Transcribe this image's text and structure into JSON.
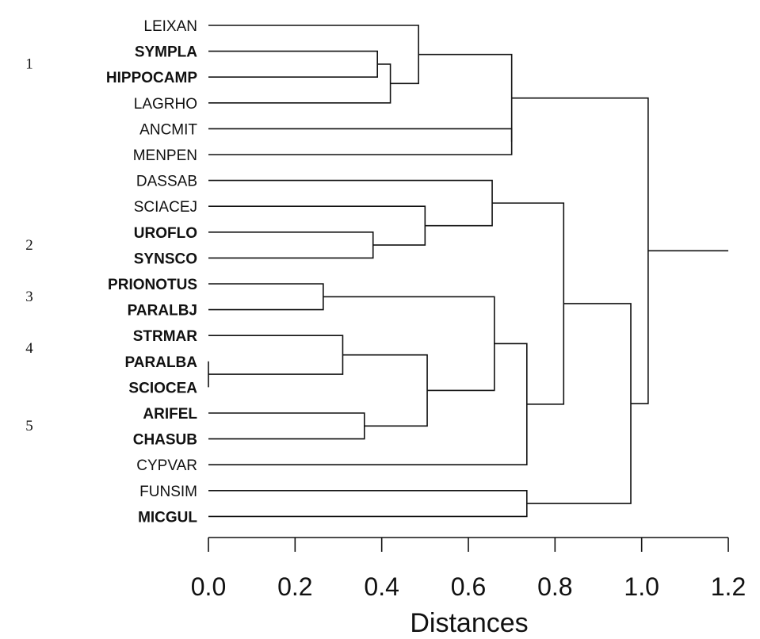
{
  "chart_data": {
    "type": "dendrogram",
    "xlabel": "Distances",
    "xlim": [
      0,
      1.2
    ],
    "xticks": [
      0.0,
      0.2,
      0.4,
      0.6,
      0.8,
      1.0,
      1.2
    ],
    "xtick_labels": [
      "0.0",
      "0.2",
      "0.4",
      "0.6",
      "0.8",
      "1.0",
      "1.2"
    ],
    "leaves": [
      "LEIXAN",
      "SYMPLA",
      "HIPPOCAMP",
      "LAGRHO",
      "ANCMIT",
      "MENPEN",
      "DASSAB",
      "SCIACEJ",
      "UROFLO",
      "SYNSCO",
      "PRIONOTUS",
      "PARALBJ",
      "STRMAR",
      "PARALBA",
      "SCIOCEA",
      "ARIFEL",
      "CHASUB",
      "CYPVAR",
      "FUNSIM",
      "MICGUL"
    ],
    "bold_leaves": [
      "SYMPLA",
      "HIPPOCAMP",
      "UROFLO",
      "SYNSCO",
      "PRIONOTUS",
      "PARALBJ",
      "STRMAR",
      "PARALBA",
      "SCIOCEA",
      "ARIFEL",
      "CHASUB",
      "MICGUL"
    ],
    "group_labels": [
      {
        "text": "1",
        "leaf": "SYMPLA"
      },
      {
        "text": "2",
        "leaf": "UROFLO"
      },
      {
        "text": "3",
        "leaf": "PRIONOTUS"
      },
      {
        "text": "4",
        "leaf": "STRMAR"
      },
      {
        "text": "5",
        "leaf": "ARIFEL"
      }
    ],
    "merges": [
      {
        "a": "PARALBA",
        "b": "SCIOCEA",
        "height": 0.0
      },
      {
        "a": "PRIONOTUS",
        "b": "PARALBJ",
        "height": 0.265
      },
      {
        "a": "STRMAR",
        "b": "PARALBA+SCIOCEA",
        "height": 0.31
      },
      {
        "a": "ARIFEL",
        "b": "CHASUB",
        "height": 0.36
      },
      {
        "a": "UROFLO",
        "b": "SYNSCO",
        "height": 0.38
      },
      {
        "a": "SYMPLA",
        "b": "HIPPOCAMP",
        "height": 0.39
      },
      {
        "a": "SYMPLA+HIPPOCAMP",
        "b": "LAGRHO",
        "height": 0.42
      },
      {
        "a": "LEIXAN",
        "b": "SYMPLA+HIPPOCAMP+LAGRHO",
        "height": 0.485
      },
      {
        "a": "SCIACEJ",
        "b": "UROFLO+SYNSCO",
        "height": 0.5
      },
      {
        "a": "STRMAR+PARALBA+SCIOCEA",
        "b": "ARIFEL+CHASUB",
        "height": 0.505
      },
      {
        "a": "DASSAB",
        "b": "SCIACEJ+UROFLO+SYNSCO",
        "height": 0.655
      },
      {
        "a": "PRIONOTUS+PARALBJ",
        "b": "STRMAR+PARALBA+SCIOCEA+ARIFEL+CHASUB",
        "height": 0.66
      },
      {
        "a": "ANCMIT",
        "b": "MENPEN",
        "height": 0.7
      },
      {
        "a": "LEIXAN+SYMPLA+HIPPOCAMP+LAGRHO",
        "b": "ANCMIT+MENPEN",
        "height": 0.7
      },
      {
        "a": "PRIONOTUS+PARALBJ+STRMAR+PARALBA+SCIOCEA+ARIFEL+CHASUB",
        "b": "CYPVAR",
        "height": 0.735
      },
      {
        "a": "FUNSIM",
        "b": "MICGUL",
        "height": 0.735
      },
      {
        "a": "DASSAB+SCIACEJ+UROFLO+SYNSCO",
        "b": "PRIONOTUS+PARALBJ+STRMAR+PARALBA+SCIOCEA+ARIFEL+CHASUB+CYPVAR",
        "height": 0.82
      },
      {
        "a": "DASSAB+SCIACEJ+UROFLO+SYNSCO+PRIONOTUS+PARALBJ+STRMAR+PARALBA+SCIOCEA+ARIFEL+CHASUB+CYPVAR",
        "b": "FUNSIM+MICGUL",
        "height": 0.975
      },
      {
        "a": "LEIXAN+SYMPLA+HIPPOCAMP+LAGRHO+ANCMIT+MENPEN",
        "b": "DASSAB+SCIACEJ+UROFLO+SYNSCO+PRIONOTUS+PARALBJ+STRMAR+PARALBA+SCIOCEA+ARIFEL+CHASUB+CYPVAR+FUNSIM+MICGUL",
        "height": 1.015
      }
    ],
    "root_stem_to": 1.2
  }
}
